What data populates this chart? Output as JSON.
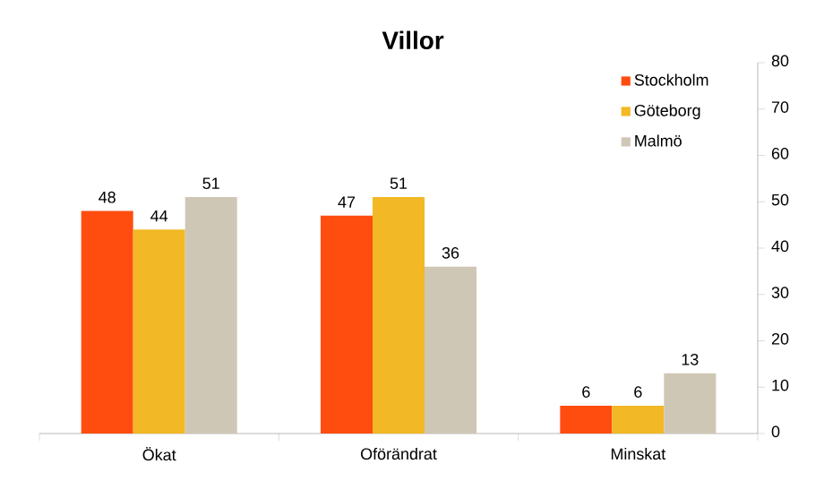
{
  "chart_data": {
    "type": "bar",
    "title": "Villor",
    "categories": [
      "Ökat",
      "Oförändrat",
      "Minskat"
    ],
    "series": [
      {
        "name": "Stockholm",
        "color": "#ff4d10",
        "values": [
          48,
          47,
          6
        ]
      },
      {
        "name": "Göteborg",
        "color": "#f2b825",
        "values": [
          44,
          51,
          6
        ]
      },
      {
        "name": "Malmö",
        "color": "#cfc7b5",
        "values": [
          51,
          36,
          13
        ]
      }
    ],
    "ylim": [
      0,
      80
    ],
    "yticks": [
      0,
      10,
      20,
      30,
      40,
      50,
      60,
      70,
      80
    ],
    "data_labels": true,
    "legend": "top right",
    "grid": false
  }
}
